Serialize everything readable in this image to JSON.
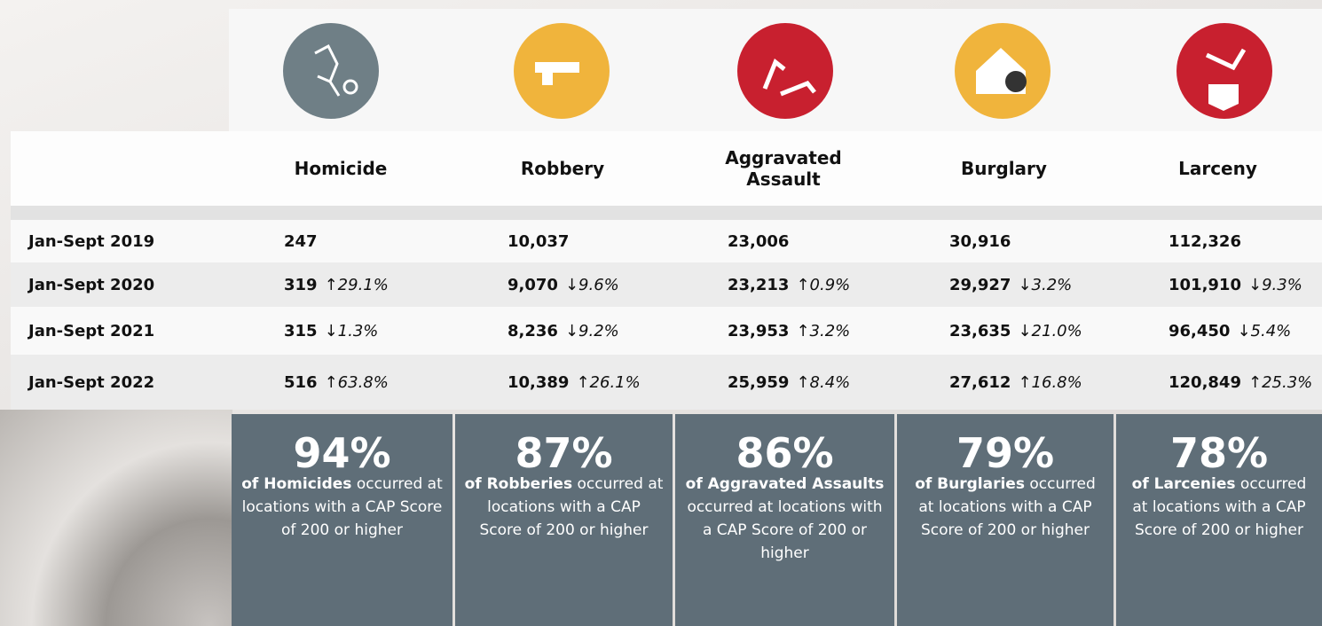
{
  "table": {
    "columns": [
      "Homicide",
      "Robbery",
      "Aggravated Assault",
      "Burglary",
      "Larceny"
    ],
    "rows": [
      {
        "label": "Jan-Sept 2019",
        "cells": [
          {
            "value": "247"
          },
          {
            "value": "10,037"
          },
          {
            "value": "23,006"
          },
          {
            "value": "30,916"
          },
          {
            "value": "112,326"
          }
        ]
      },
      {
        "label": "Jan-Sept 2020",
        "cells": [
          {
            "value": "319",
            "change": "↑29.1%"
          },
          {
            "value": "9,070",
            "change": "↓9.6%"
          },
          {
            "value": "23,213",
            "change": "↑0.9%"
          },
          {
            "value": "29,927",
            "change": "↓3.2%"
          },
          {
            "value": "101,910",
            "change": "↓9.3%"
          }
        ]
      },
      {
        "label": "Jan-Sept 2021",
        "cells": [
          {
            "value": "315",
            "change": "↓1.3%"
          },
          {
            "value": "8,236",
            "change": "↓9.2%"
          },
          {
            "value": "23,953",
            "change": "↑3.2%"
          },
          {
            "value": "23,635",
            "change": "↓21.0%"
          },
          {
            "value": "96,450",
            "change": "↓5.4%"
          }
        ]
      },
      {
        "label": "Jan-Sept 2022",
        "cells": [
          {
            "value": "516",
            "change": "↑63.8%"
          },
          {
            "value": "10,389",
            "change": "↑26.1%"
          },
          {
            "value": "25,959",
            "change": "↑8.4%"
          },
          {
            "value": "27,612",
            "change": "↑16.8%"
          },
          {
            "value": "120,849",
            "change": "↑25.3%"
          }
        ]
      }
    ]
  },
  "stats": [
    {
      "percent": "94%",
      "bold": "of Homicides",
      "text": "occurred at locations with a CAP Score of 200 or higher"
    },
    {
      "percent": "87%",
      "bold": "of Robberies",
      "text": "occurred at locations with a CAP Score of 200 or higher"
    },
    {
      "percent": "86%",
      "bold": "of Aggravated Assaults",
      "text": "occurred at locations with a CAP Score of 200 or higher"
    },
    {
      "percent": "79%",
      "bold": "of Burglaries",
      "text": "occurred at locations with a CAP Score of 200 or higher"
    },
    {
      "percent": "78%",
      "bold": "of Larcenies",
      "text": "occurred at locations with a CAP Score of 200 or higher"
    }
  ]
}
